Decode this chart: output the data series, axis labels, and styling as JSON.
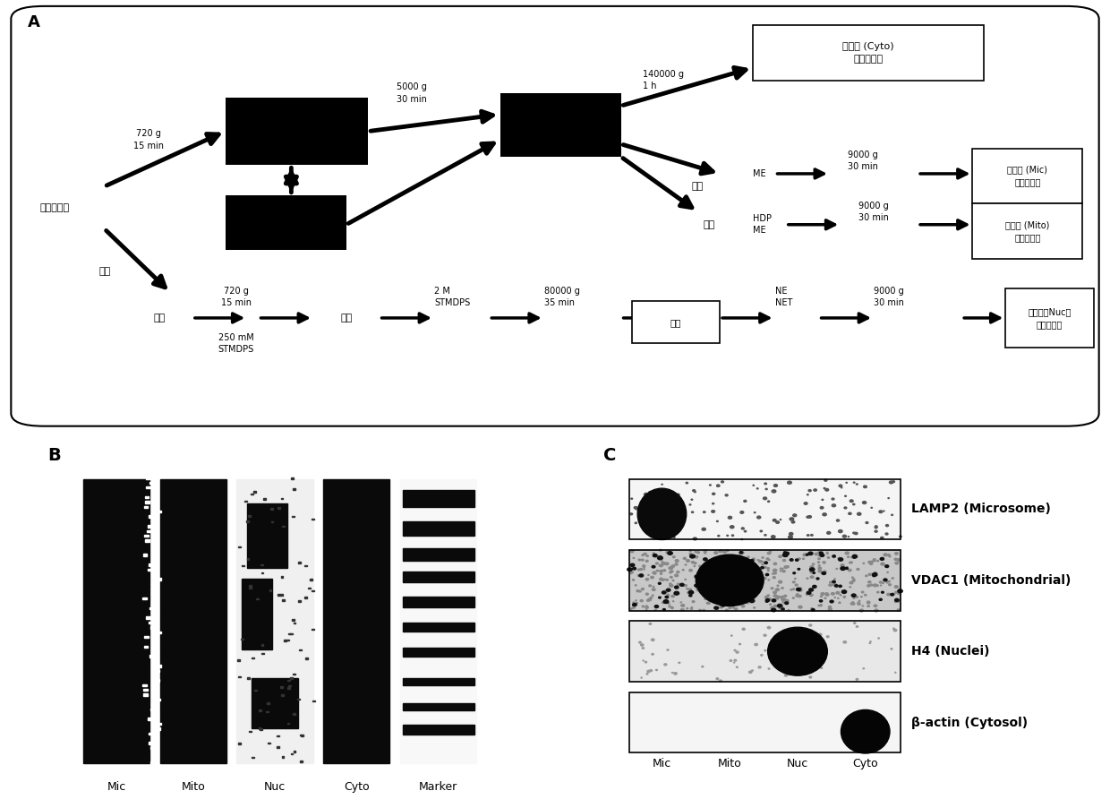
{
  "panel_A_label": "A",
  "panel_B_label": "B",
  "panel_C_label": "C",
  "bg_color": "#ffffff",
  "start_label": "细胞匀浆液",
  "pellet": "沉淠",
  "box_cyto": "上清液 (Cyto)\n细胞质蛋白",
  "box_mic": "上清液 (Mic)\n微粒体蛋白",
  "box_mito": "上清液 (Mito)\n线粒体蛋白",
  "box_nuc": "上清液（Nuc）\n细胞核蛋白",
  "box_pellet_nuc": "沉淠",
  "panel_C_labels": [
    "LAMP2 (Microsome)",
    "VDAC1 (Mitochondrial)",
    "H4 (Nuclei)",
    "β-actin (Cytosol)"
  ],
  "panel_C_xlabels": [
    "Mic",
    "Mito",
    "Nuc",
    "Cyto"
  ],
  "panel_B_xlabels": [
    "Mic",
    "Mito",
    "Nuc",
    "Cyto",
    "Marker"
  ]
}
